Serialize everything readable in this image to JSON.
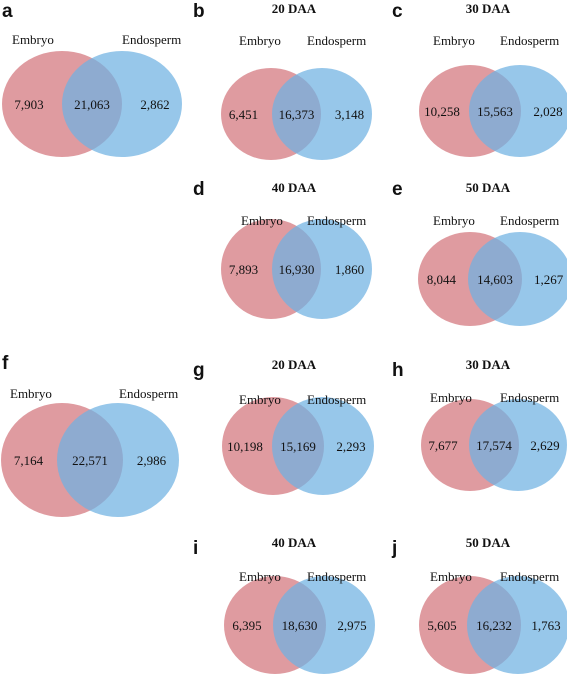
{
  "colors": {
    "embryo": "#d98a8f",
    "endosperm": "#6fb1e2"
  },
  "panels": [
    {
      "letter": "a",
      "title": "",
      "sets": [
        "Embryo",
        "Endosperm"
      ],
      "counts": {
        "embryo_only": "7,903",
        "overlap": "21,063",
        "endosperm_only": "2,862"
      }
    },
    {
      "letter": "b",
      "title": "20 DAA",
      "sets": [
        "Embryo",
        "Endosperm"
      ],
      "counts": {
        "embryo_only": "6,451",
        "overlap": "16,373",
        "endosperm_only": "3,148"
      }
    },
    {
      "letter": "c",
      "title": "30 DAA",
      "sets": [
        "Embryo",
        "Endosperm"
      ],
      "counts": {
        "embryo_only": "10,258",
        "overlap": "15,563",
        "endosperm_only": "2,028"
      }
    },
    {
      "letter": "d",
      "title": "40 DAA",
      "sets": [
        "Embryo",
        "Endosperm"
      ],
      "counts": {
        "embryo_only": "7,893",
        "overlap": "16,930",
        "endosperm_only": "1,860"
      }
    },
    {
      "letter": "e",
      "title": "50 DAA",
      "sets": [
        "Embryo",
        "Endosperm"
      ],
      "counts": {
        "embryo_only": "8,044",
        "overlap": "14,603",
        "endosperm_only": "1,267"
      }
    },
    {
      "letter": "f",
      "title": "",
      "sets": [
        "Embryo",
        "Endosperm"
      ],
      "counts": {
        "embryo_only": "7,164",
        "overlap": "22,571",
        "endosperm_only": "2,986"
      }
    },
    {
      "letter": "g",
      "title": "20 DAA",
      "sets": [
        "Embryo",
        "Endosperm"
      ],
      "counts": {
        "embryo_only": "10,198",
        "overlap": "15,169",
        "endosperm_only": "2,293"
      }
    },
    {
      "letter": "h",
      "title": "30 DAA",
      "sets": [
        "Embryo",
        "Endosperm"
      ],
      "counts": {
        "embryo_only": "7,677",
        "overlap": "17,574",
        "endosperm_only": "2,629"
      }
    },
    {
      "letter": "i",
      "title": "40 DAA",
      "sets": [
        "Embryo",
        "Endosperm"
      ],
      "counts": {
        "embryo_only": "6,395",
        "overlap": "18,630",
        "endosperm_only": "2,975"
      }
    },
    {
      "letter": "j",
      "title": "50 DAA",
      "sets": [
        "Embryo",
        "Endosperm"
      ],
      "counts": {
        "embryo_only": "5,605",
        "overlap": "16,232",
        "endosperm_only": "1,763"
      }
    }
  ]
}
